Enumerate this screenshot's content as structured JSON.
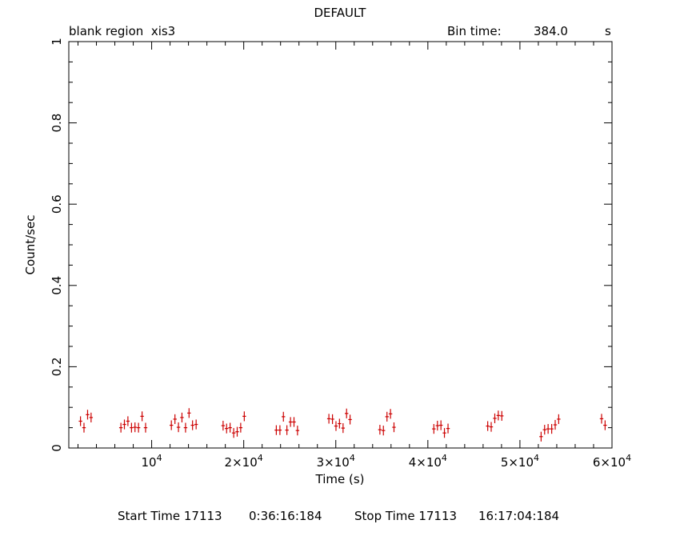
{
  "chart_data": {
    "type": "scatter",
    "title": "DEFAULT",
    "subtitle_left": "blank region  xis3",
    "bin_label": "Bin time:",
    "bin_value": "384.0",
    "bin_unit": "s",
    "xlabel": "Time (s)",
    "ylabel": "Count/sec",
    "xlim": [
      1000,
      60000
    ],
    "ylim": [
      0,
      1
    ],
    "y_ticks": [
      "0",
      "0.2",
      "0.4",
      "0.6",
      "0.8",
      "1"
    ],
    "y_tick_values": [
      0,
      0.2,
      0.4,
      0.6,
      0.8,
      1
    ],
    "x_ticks": [
      {
        "value": 10000,
        "base": "10",
        "mult": "",
        "exp": "4"
      },
      {
        "value": 20000,
        "base": "10",
        "mult": "2×",
        "exp": "4"
      },
      {
        "value": 30000,
        "base": "10",
        "mult": "3×",
        "exp": "4"
      },
      {
        "value": 40000,
        "base": "10",
        "mult": "4×",
        "exp": "4"
      },
      {
        "value": 50000,
        "base": "10",
        "mult": "5×",
        "exp": "4"
      },
      {
        "value": 60000,
        "base": "10",
        "mult": "6×",
        "exp": "4"
      }
    ],
    "x_bin_halfwidth": 192,
    "y_error": 0.012,
    "series": [
      {
        "color": "#cc0000",
        "points": [
          [
            2270,
            0.066
          ],
          [
            2650,
            0.05
          ],
          [
            3040,
            0.082
          ],
          [
            3420,
            0.075
          ],
          [
            6660,
            0.05
          ],
          [
            7040,
            0.058
          ],
          [
            7420,
            0.066
          ],
          [
            7810,
            0.05
          ],
          [
            8190,
            0.051
          ],
          [
            8570,
            0.05
          ],
          [
            8960,
            0.078
          ],
          [
            9340,
            0.05
          ],
          [
            12140,
            0.056
          ],
          [
            12530,
            0.071
          ],
          [
            12910,
            0.051
          ],
          [
            13290,
            0.075
          ],
          [
            13680,
            0.05
          ],
          [
            14060,
            0.086
          ],
          [
            14440,
            0.056
          ],
          [
            14830,
            0.058
          ],
          [
            17760,
            0.055
          ],
          [
            18140,
            0.048
          ],
          [
            18520,
            0.05
          ],
          [
            18910,
            0.037
          ],
          [
            19290,
            0.04
          ],
          [
            19670,
            0.05
          ],
          [
            20060,
            0.078
          ],
          [
            23540,
            0.044
          ],
          [
            23930,
            0.044
          ],
          [
            24310,
            0.077
          ],
          [
            24690,
            0.044
          ],
          [
            25080,
            0.064
          ],
          [
            25460,
            0.064
          ],
          [
            25840,
            0.043
          ],
          [
            29250,
            0.072
          ],
          [
            29640,
            0.071
          ],
          [
            30020,
            0.054
          ],
          [
            30400,
            0.06
          ],
          [
            30790,
            0.049
          ],
          [
            31170,
            0.085
          ],
          [
            31550,
            0.07
          ],
          [
            34790,
            0.045
          ],
          [
            35170,
            0.043
          ],
          [
            35560,
            0.077
          ],
          [
            35940,
            0.084
          ],
          [
            36320,
            0.051
          ],
          [
            40650,
            0.047
          ],
          [
            41040,
            0.055
          ],
          [
            41420,
            0.056
          ],
          [
            41800,
            0.037
          ],
          [
            42190,
            0.048
          ],
          [
            46500,
            0.054
          ],
          [
            46880,
            0.052
          ],
          [
            47270,
            0.073
          ],
          [
            47650,
            0.08
          ],
          [
            48030,
            0.079
          ],
          [
            52300,
            0.028
          ],
          [
            52680,
            0.045
          ],
          [
            53060,
            0.047
          ],
          [
            53450,
            0.047
          ],
          [
            53830,
            0.057
          ],
          [
            54210,
            0.071
          ],
          [
            58870,
            0.072
          ],
          [
            59250,
            0.056
          ]
        ]
      }
    ]
  },
  "footer": {
    "start_label": "Start Time 17113",
    "start_value": "0:36:16:184",
    "stop_label": "Stop Time 17113",
    "stop_value": "16:17:04:184"
  }
}
